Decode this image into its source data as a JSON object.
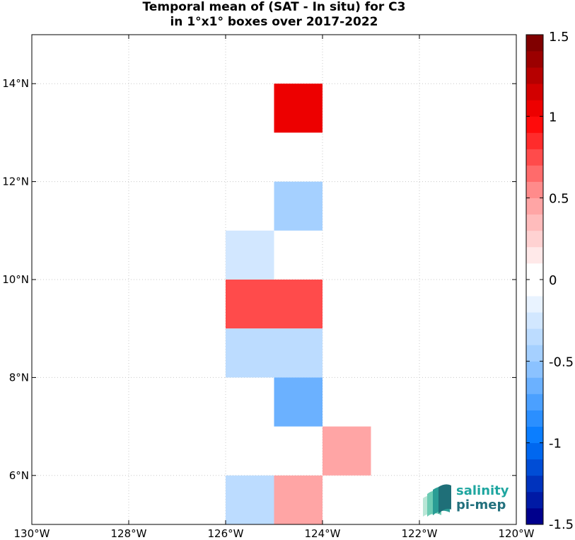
{
  "title": {
    "line1": "Temporal mean of (SAT - In situ) for C3",
    "line2": "in 1°x1° boxes over 2017-2022"
  },
  "logo": {
    "line1": "salinity",
    "line2": "pi-mep"
  },
  "chart_data": {
    "type": "heatmap",
    "xlim": [
      -130,
      -120
    ],
    "ylim": [
      5,
      15
    ],
    "x_ticks": [
      {
        "value": -130,
        "label": "130°W"
      },
      {
        "value": -128,
        "label": "128°W"
      },
      {
        "value": -126,
        "label": "126°W"
      },
      {
        "value": -124,
        "label": "124°W"
      },
      {
        "value": -122,
        "label": "122°W"
      },
      {
        "value": -120,
        "label": "120°W"
      }
    ],
    "y_ticks": [
      {
        "value": 6,
        "label": "6°N"
      },
      {
        "value": 8,
        "label": "8°N"
      },
      {
        "value": 10,
        "label": "10°N"
      },
      {
        "value": 12,
        "label": "12°N"
      },
      {
        "value": 14,
        "label": "14°N"
      }
    ],
    "grid": true,
    "cells": [
      {
        "lon_min": -125,
        "lat_min": 13,
        "value": 1.0
      },
      {
        "lon_min": -125,
        "lat_min": 11,
        "value": -0.45
      },
      {
        "lon_min": -126,
        "lat_min": 10,
        "value": -0.25
      },
      {
        "lon_min": -126,
        "lat_min": 9,
        "value": 0.75
      },
      {
        "lon_min": -125,
        "lat_min": 9,
        "value": 0.75
      },
      {
        "lon_min": -126,
        "lat_min": 8,
        "value": -0.35
      },
      {
        "lon_min": -125,
        "lat_min": 8,
        "value": -0.35
      },
      {
        "lon_min": -125,
        "lat_min": 7,
        "value": -0.65
      },
      {
        "lon_min": -124,
        "lat_min": 6,
        "value": 0.45
      },
      {
        "lon_min": -126,
        "lat_min": 5,
        "value": -0.3
      },
      {
        "lon_min": -125,
        "lat_min": 5,
        "value": 0.45
      }
    ],
    "colorbar": {
      "range": [
        -1.5,
        1.5
      ],
      "n_bins": 30,
      "ticks": [
        {
          "value": 1.5,
          "label": "1.5"
        },
        {
          "value": 1.0,
          "label": "1"
        },
        {
          "value": 0.5,
          "label": "0.5"
        },
        {
          "value": 0.0,
          "label": "0"
        },
        {
          "value": -0.5,
          "label": "-0.5"
        },
        {
          "value": -1.0,
          "label": "-1"
        },
        {
          "value": -1.5,
          "label": "-1.5"
        }
      ]
    }
  }
}
